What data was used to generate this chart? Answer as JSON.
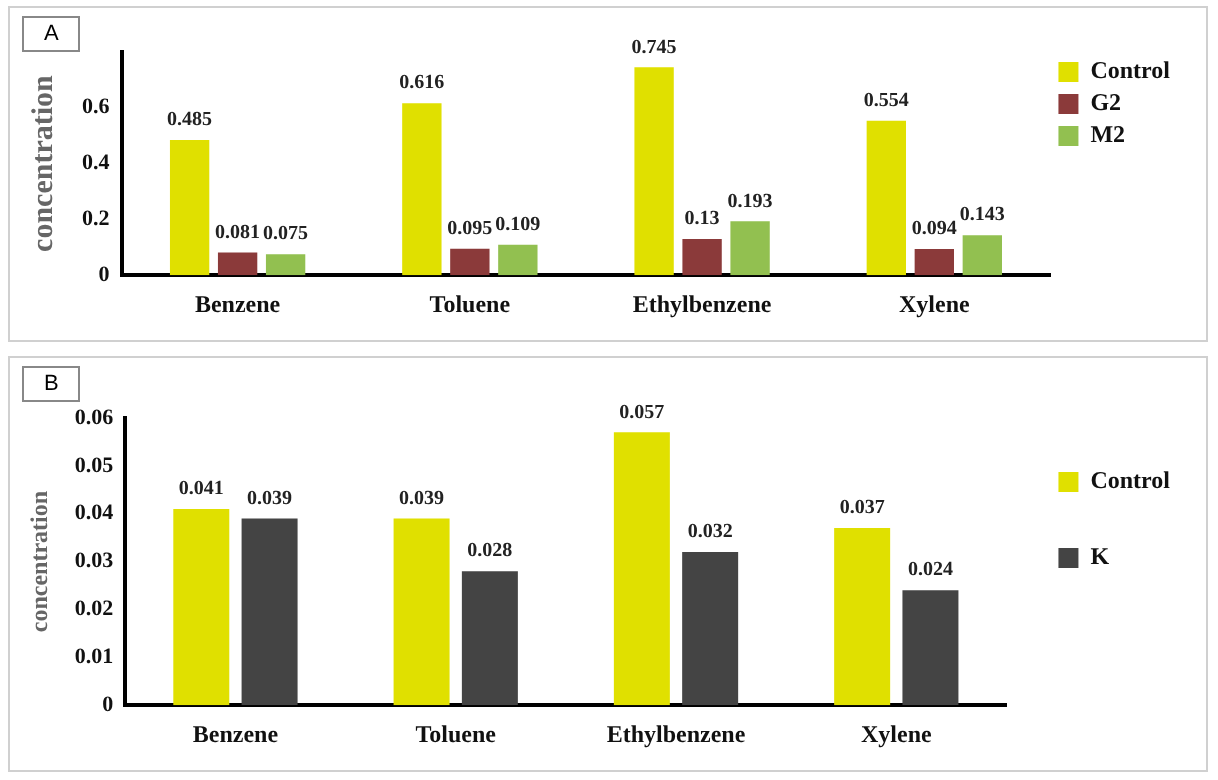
{
  "chart_data": [
    {
      "type": "bar",
      "title": "A",
      "ylabel": "concentration",
      "categories": [
        "Benzene",
        "Toluene",
        "Ethylbenzene",
        "Xylene"
      ],
      "series": [
        {
          "name": "Control",
          "color": "#e0e000",
          "values": [
            0.485,
            0.616,
            0.745,
            0.554
          ]
        },
        {
          "name": "G2",
          "color": "#8b3a3a",
          "values": [
            0.081,
            0.095,
            0.13,
            0.094
          ]
        },
        {
          "name": "M2",
          "color": "#92c050",
          "values": [
            0.075,
            0.109,
            0.193,
            0.143
          ]
        }
      ],
      "ylim": [
        0,
        0.8
      ],
      "yticks": [
        0,
        0.2,
        0.4,
        0.6
      ],
      "data_labels": true,
      "grid": false,
      "legend": "top right"
    },
    {
      "type": "bar",
      "title": "B",
      "ylabel": "concentration",
      "categories": [
        "Benzene",
        "Toluene",
        "Ethylbenzene",
        "Xylene"
      ],
      "series": [
        {
          "name": "Control",
          "color": "#e0e000",
          "values": [
            0.041,
            0.039,
            0.057,
            0.037
          ]
        },
        {
          "name": "K",
          "color": "#444444",
          "values": [
            0.039,
            0.028,
            0.032,
            0.024
          ]
        }
      ],
      "ylim": [
        0,
        0.06
      ],
      "yticks": [
        0,
        0.01,
        0.02,
        0.03,
        0.04,
        0.05,
        0.06
      ],
      "data_labels": true,
      "grid": false,
      "legend": "top right"
    }
  ]
}
